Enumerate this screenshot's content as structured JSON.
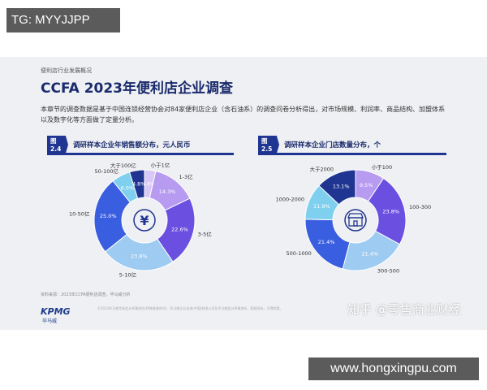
{
  "tag": "TG: MYYJJPP",
  "slide": {
    "breadcrumb": "便利店行业发展概况",
    "title": "CCFA 2023年便利店企业调查",
    "body": "本章节的调查数据是基于中国连锁经营协会对84家便利店企业（含石油系）的调查问卷分析得出，对市场规模、利润率、商品结构、加盟体系以及数字化等方面做了定量分析。",
    "source": "资料来源：2023年CCFA便利店调查，毕马威分析",
    "logo": "KPMG",
    "logo_sub": "毕马威",
    "footnote": "©2023毕马威华振会计师事务所(特殊普通合伙)、毕马威企业咨询(中国)有限公司及毕马威会计师事务所，版权所有，不得转载。",
    "watermark": "知乎 @零售商业财经"
  },
  "figures": [
    {
      "num": "图2.4",
      "title": "调研样本企业年销售额分布，元人民币",
      "center_icon": "yen-icon"
    },
    {
      "num": "图2.5",
      "title": "调研样本企业门店数量分布，个",
      "center_icon": "store-icon"
    }
  ],
  "chart_data": [
    {
      "type": "pie",
      "title": "调研样本企业年销售额分布，元人民币",
      "categories": [
        "小于1亿",
        "1-3亿",
        "3-5亿",
        "5-10亿",
        "10-50亿",
        "50-100亿",
        "大于100亿"
      ],
      "values": [
        3.6,
        14.3,
        22.6,
        23.8,
        25.0,
        6.0,
        4.8
      ],
      "labels": [
        "3.6%",
        "14.3%",
        "22.6%",
        "23.8%",
        "25.0%",
        "6.0%",
        "4.8%"
      ],
      "colors": [
        "#d9c8f5",
        "#b79bf0",
        "#6b4fe0",
        "#9ecbf2",
        "#3a5ee0",
        "#7fd0ee",
        "#1f3591"
      ]
    },
    {
      "type": "pie",
      "title": "调研样本企业门店数量分布，个",
      "categories": [
        "小于100",
        "100-300",
        "300-500",
        "500-1000",
        "1000-2000",
        "大于2000"
      ],
      "values": [
        9.5,
        23.8,
        21.4,
        21.4,
        11.9,
        13.1
      ],
      "labels": [
        "9.5%",
        "23.8%",
        "21.4%",
        "21.4%",
        "11.9%",
        "13.1%"
      ],
      "colors": [
        "#b79bf0",
        "#6b4fe0",
        "#9ecbf2",
        "#3a5ee0",
        "#7fd0ee",
        "#1f3591"
      ]
    }
  ],
  "url": "www.hongxingpu.com"
}
